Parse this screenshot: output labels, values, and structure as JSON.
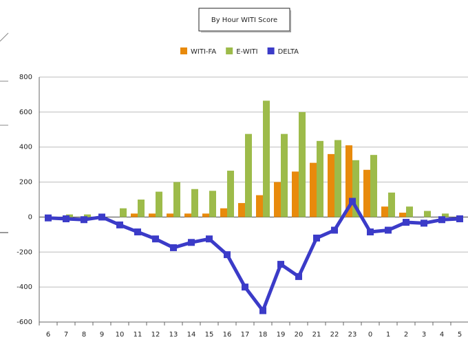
{
  "chart_data": {
    "type": "bar-line",
    "title": "By Hour WITI Score",
    "categories": [
      "6",
      "7",
      "8",
      "9",
      "10",
      "11",
      "12",
      "13",
      "14",
      "15",
      "16",
      "17",
      "18",
      "19",
      "20",
      "21",
      "22",
      "23",
      "0",
      "1",
      "2",
      "3",
      "4",
      "5"
    ],
    "series": [
      {
        "name": "WITI-FA",
        "color": "#e88a0c",
        "type": "bar",
        "values": [
          0,
          0,
          0,
          0,
          0,
          20,
          20,
          20,
          20,
          20,
          50,
          80,
          125,
          200,
          260,
          310,
          360,
          410,
          270,
          60,
          25,
          0,
          0,
          0
        ]
      },
      {
        "name": "E-WITI",
        "color": "#9dbb4a",
        "type": "bar",
        "values": [
          0,
          15,
          15,
          0,
          50,
          100,
          145,
          200,
          160,
          150,
          265,
          475,
          665,
          475,
          600,
          435,
          440,
          325,
          355,
          140,
          60,
          35,
          20,
          0
        ]
      },
      {
        "name": "DELTA",
        "color": "#3b3bc8",
        "type": "line",
        "values": [
          -5,
          -10,
          -15,
          0,
          -45,
          -85,
          -125,
          -175,
          -145,
          -125,
          -215,
          -400,
          -535,
          -270,
          -340,
          -120,
          -75,
          90,
          -85,
          -75,
          -30,
          -35,
          -15,
          -10
        ]
      }
    ],
    "ylim": [
      -600,
      800
    ],
    "yticks": [
      -600,
      -400,
      -200,
      0,
      200,
      400,
      600,
      800
    ],
    "grid": true,
    "legend": "top"
  }
}
